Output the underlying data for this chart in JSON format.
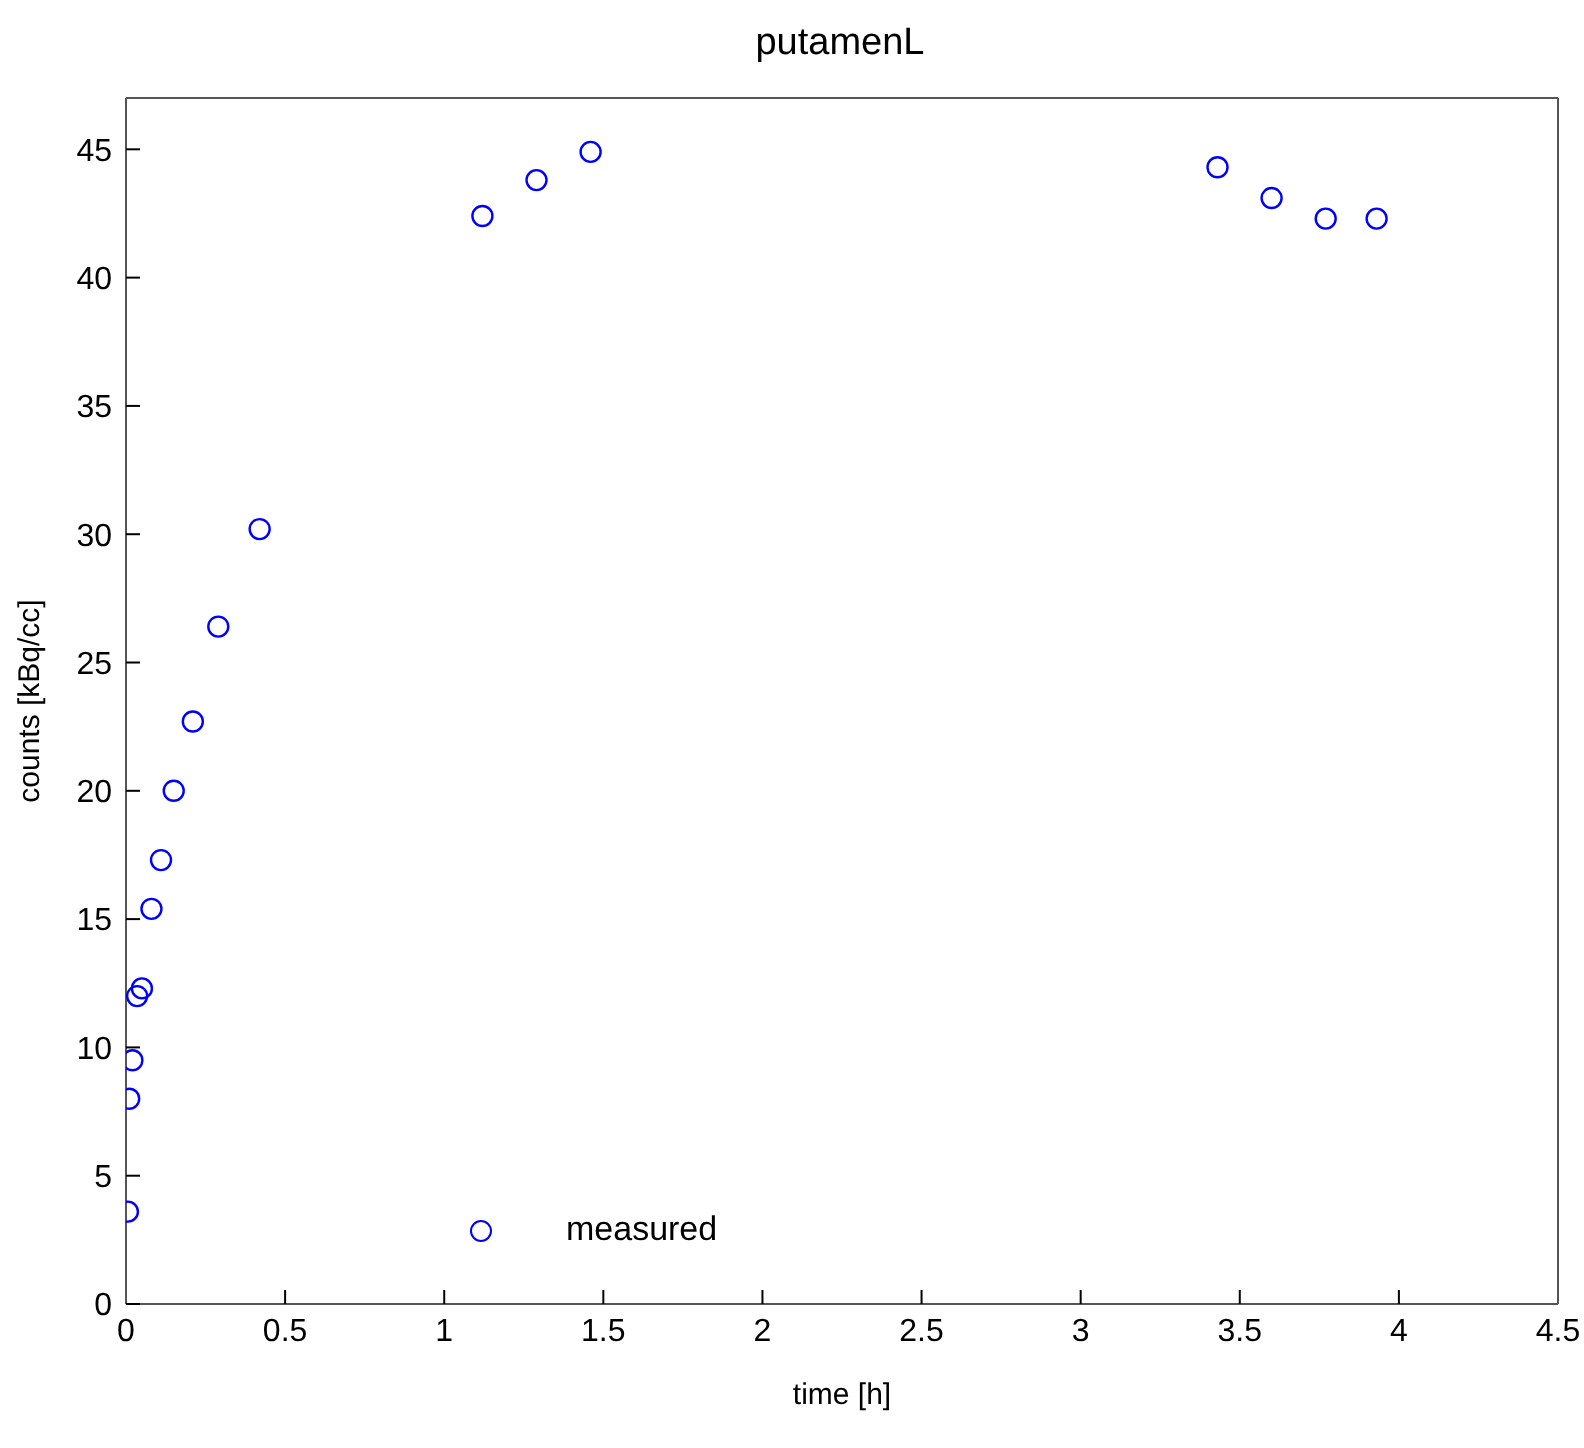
{
  "chart_data": {
    "type": "scatter",
    "title": "putamenL",
    "xlabel": "time [h]",
    "ylabel": "counts [kBq/cc]",
    "x": [
      0.006,
      0.01,
      0.02,
      0.035,
      0.05,
      0.08,
      0.11,
      0.15,
      0.21,
      0.29,
      0.42,
      1.12,
      1.29,
      1.46,
      3.43,
      3.6,
      3.77,
      3.93
    ],
    "series": [
      {
        "name": "measured",
        "color": "#0000ff",
        "values": [
          3.6,
          8.0,
          9.5,
          12.0,
          12.3,
          15.4,
          17.3,
          20.0,
          22.7,
          26.4,
          30.2,
          42.4,
          43.8,
          44.9,
          44.3,
          43.1,
          42.3,
          42.3
        ]
      }
    ],
    "xlim": [
      0,
      4.5
    ],
    "xticks": [
      0,
      0.5,
      1,
      1.5,
      2,
      2.5,
      3,
      3.5,
      4,
      4.5
    ],
    "ylim": [
      0,
      47
    ],
    "yticks": [
      0,
      5,
      10,
      15,
      20,
      25,
      30,
      35,
      40,
      45
    ],
    "legend": "bottom left",
    "marker": "circle"
  }
}
